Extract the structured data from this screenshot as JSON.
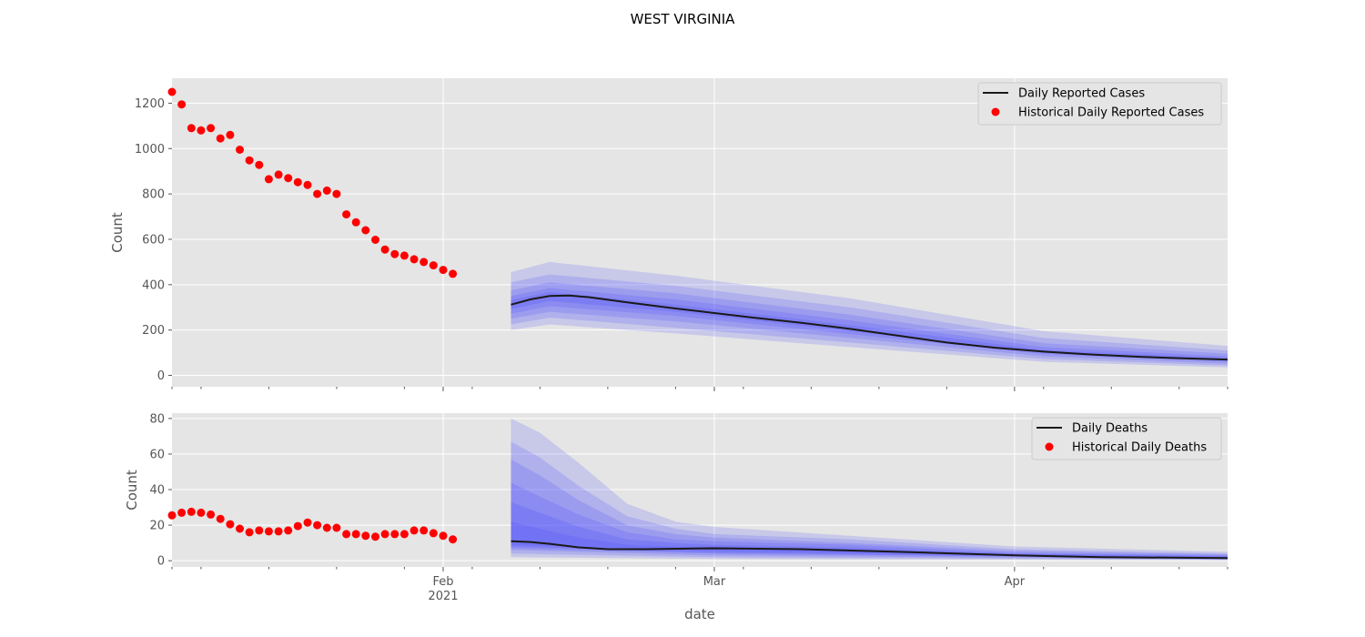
{
  "figure": {
    "title": "WEST VIRGINIA",
    "xlabel": "date"
  },
  "colors": {
    "panel_bg": "#e5e5e5",
    "grid": "#ffffff",
    "tick_text": "#555555",
    "median_line": "#1a1a1a",
    "historical_points": "#ff0000",
    "band_fill": "#3b3bff"
  },
  "chart_data": [
    {
      "type": "line",
      "panel": "cases",
      "ylabel": "Count",
      "ylim": [
        -50,
        1310
      ],
      "yticks": [
        0,
        200,
        400,
        600,
        800,
        1000,
        1200
      ],
      "xlim": [
        "2021-01-04",
        "2021-04-23"
      ],
      "xticks_major": [
        {
          "date": "2021-02-01",
          "label": "Feb",
          "sublabel": "2021"
        },
        {
          "date": "2021-03-01",
          "label": "Mar",
          "sublabel": ""
        },
        {
          "date": "2021-04-01",
          "label": "Apr",
          "sublabel": ""
        }
      ],
      "xticks_minor": [
        "2021-01-04",
        "2021-01-07",
        "2021-01-14",
        "2021-01-21",
        "2021-01-28",
        "2021-02-04",
        "2021-02-11",
        "2021-02-18",
        "2021-02-25",
        "2021-03-04",
        "2021-03-11",
        "2021-03-18",
        "2021-03-25",
        "2021-04-04",
        "2021-04-11",
        "2021-04-18",
        "2021-04-23"
      ],
      "grid": true,
      "legend": {
        "placement": "top-right",
        "line_label": "Daily Reported Cases",
        "points_label": "Historical Daily Reported Cases"
      },
      "historical": {
        "name": "Historical Daily Reported Cases",
        "start_date": "2021-01-04",
        "values": [
          1250,
          1195,
          1090,
          1080,
          1090,
          1045,
          1060,
          995,
          948,
          928,
          865,
          885,
          870,
          852,
          840,
          800,
          815,
          800,
          710,
          675,
          640,
          598,
          555,
          535,
          528,
          512,
          500,
          485,
          465,
          448
        ]
      },
      "forecast": {
        "name": "Daily Reported Cases",
        "median": [
          [
            "2021-02-08",
            312
          ],
          [
            "2021-02-10",
            335
          ],
          [
            "2021-02-12",
            350
          ],
          [
            "2021-02-14",
            352
          ],
          [
            "2021-02-16",
            345
          ],
          [
            "2021-02-20",
            322
          ],
          [
            "2021-02-25",
            295
          ],
          [
            "2021-03-01",
            275
          ],
          [
            "2021-03-05",
            255
          ],
          [
            "2021-03-10",
            232
          ],
          [
            "2021-03-15",
            205
          ],
          [
            "2021-03-20",
            175
          ],
          [
            "2021-03-25",
            145
          ],
          [
            "2021-03-30",
            122
          ],
          [
            "2021-04-04",
            105
          ],
          [
            "2021-04-09",
            92
          ],
          [
            "2021-04-14",
            82
          ],
          [
            "2021-04-18",
            76
          ],
          [
            "2021-04-23",
            70
          ]
        ],
        "bands": [
          {
            "lower": [
              [
                "2021-02-08",
                200
              ],
              [
                "2021-02-12",
                225
              ],
              [
                "2021-02-25",
                185
              ],
              [
                "2021-03-15",
                125
              ],
              [
                "2021-04-04",
                60
              ],
              [
                "2021-04-23",
                35
              ]
            ],
            "upper": [
              [
                "2021-02-08",
                455
              ],
              [
                "2021-02-12",
                500
              ],
              [
                "2021-02-25",
                440
              ],
              [
                "2021-03-15",
                340
              ],
              [
                "2021-04-04",
                195
              ],
              [
                "2021-04-23",
                130
              ]
            ]
          },
          {
            "lower": [
              [
                "2021-02-08",
                225
              ],
              [
                "2021-02-12",
                255
              ],
              [
                "2021-02-25",
                210
              ],
              [
                "2021-03-15",
                145
              ],
              [
                "2021-04-04",
                72
              ],
              [
                "2021-04-23",
                44
              ]
            ],
            "upper": [
              [
                "2021-02-08",
                410
              ],
              [
                "2021-02-12",
                445
              ],
              [
                "2021-02-25",
                395
              ],
              [
                "2021-03-15",
                300
              ],
              [
                "2021-04-04",
                165
              ],
              [
                "2021-04-23",
                110
              ]
            ]
          },
          {
            "lower": [
              [
                "2021-02-08",
                250
              ],
              [
                "2021-02-12",
                280
              ],
              [
                "2021-02-25",
                238
              ],
              [
                "2021-03-15",
                165
              ],
              [
                "2021-04-04",
                84
              ],
              [
                "2021-04-23",
                52
              ]
            ],
            "upper": [
              [
                "2021-02-08",
                375
              ],
              [
                "2021-02-12",
                410
              ],
              [
                "2021-02-25",
                362
              ],
              [
                "2021-03-15",
                268
              ],
              [
                "2021-04-04",
                142
              ],
              [
                "2021-04-23",
                96
              ]
            ]
          },
          {
            "lower": [
              [
                "2021-02-08",
                272
              ],
              [
                "2021-02-12",
                305
              ],
              [
                "2021-02-25",
                262
              ],
              [
                "2021-03-15",
                182
              ],
              [
                "2021-04-04",
                94
              ],
              [
                "2021-04-23",
                60
              ]
            ],
            "upper": [
              [
                "2021-02-08",
                350
              ],
              [
                "2021-02-12",
                385
              ],
              [
                "2021-02-25",
                335
              ],
              [
                "2021-03-15",
                243
              ],
              [
                "2021-04-04",
                125
              ],
              [
                "2021-04-23",
                84
              ]
            ]
          },
          {
            "lower": [
              [
                "2021-02-08",
                292
              ],
              [
                "2021-02-12",
                328
              ],
              [
                "2021-02-25",
                280
              ],
              [
                "2021-03-15",
                195
              ],
              [
                "2021-04-04",
                100
              ],
              [
                "2021-04-23",
                65
              ]
            ],
            "upper": [
              [
                "2021-02-08",
                332
              ],
              [
                "2021-02-12",
                368
              ],
              [
                "2021-02-25",
                312
              ],
              [
                "2021-03-15",
                222
              ],
              [
                "2021-04-04",
                112
              ],
              [
                "2021-04-23",
                76
              ]
            ]
          }
        ]
      }
    },
    {
      "type": "line",
      "panel": "deaths",
      "ylabel": "Count",
      "ylim": [
        -3.5,
        83
      ],
      "yticks": [
        0,
        20,
        40,
        60,
        80
      ],
      "xlim": [
        "2021-01-04",
        "2021-04-23"
      ],
      "grid": true,
      "legend": {
        "placement": "top-right",
        "line_label": "Daily Deaths",
        "points_label": "Historical Daily Deaths"
      },
      "historical": {
        "name": "Historical Daily Deaths",
        "start_date": "2021-01-04",
        "values": [
          25.5,
          27,
          27.5,
          27,
          26,
          23.5,
          20.5,
          18,
          16,
          17,
          16.5,
          16.5,
          17,
          19.5,
          21.5,
          20,
          18.5,
          18.5,
          15,
          15,
          14,
          13.5,
          15,
          15,
          15,
          17,
          17,
          15.5,
          14,
          12
        ]
      },
      "forecast": {
        "name": "Daily Deaths",
        "median": [
          [
            "2021-02-08",
            11
          ],
          [
            "2021-02-10",
            10.5
          ],
          [
            "2021-02-12",
            9.5
          ],
          [
            "2021-02-15",
            7.5
          ],
          [
            "2021-02-18",
            6.5
          ],
          [
            "2021-02-22",
            6.5
          ],
          [
            "2021-03-01",
            7
          ],
          [
            "2021-03-10",
            6.5
          ],
          [
            "2021-03-20",
            5
          ],
          [
            "2021-04-01",
            3
          ],
          [
            "2021-04-10",
            2
          ],
          [
            "2021-04-23",
            1.5
          ]
        ],
        "bands": [
          {
            "lower": [
              [
                "2021-02-08",
                2
              ],
              [
                "2021-03-01",
                1
              ],
              [
                "2021-04-23",
                0.3
              ]
            ],
            "upper": [
              [
                "2021-02-08",
                80
              ],
              [
                "2021-02-11",
                72
              ],
              [
                "2021-02-15",
                55
              ],
              [
                "2021-02-20",
                32
              ],
              [
                "2021-02-25",
                22
              ],
              [
                "2021-03-01",
                19
              ],
              [
                "2021-03-15",
                14
              ],
              [
                "2021-04-01",
                8
              ],
              [
                "2021-04-23",
                5
              ]
            ]
          },
          {
            "lower": [
              [
                "2021-02-08",
                4
              ],
              [
                "2021-03-01",
                2
              ],
              [
                "2021-04-23",
                0.5
              ]
            ],
            "upper": [
              [
                "2021-02-08",
                67
              ],
              [
                "2021-02-11",
                58
              ],
              [
                "2021-02-15",
                42
              ],
              [
                "2021-02-20",
                25
              ],
              [
                "2021-02-25",
                18
              ],
              [
                "2021-03-01",
                15
              ],
              [
                "2021-03-15",
                12
              ],
              [
                "2021-04-01",
                6.5
              ],
              [
                "2021-04-23",
                4
              ]
            ]
          },
          {
            "lower": [
              [
                "2021-02-08",
                6
              ],
              [
                "2021-03-01",
                3
              ],
              [
                "2021-04-23",
                0.7
              ]
            ],
            "upper": [
              [
                "2021-02-08",
                57
              ],
              [
                "2021-02-11",
                48
              ],
              [
                "2021-02-15",
                34
              ],
              [
                "2021-02-20",
                20
              ],
              [
                "2021-02-25",
                15
              ],
              [
                "2021-03-01",
                13
              ],
              [
                "2021-03-15",
                10
              ],
              [
                "2021-04-01",
                5.5
              ],
              [
                "2021-04-23",
                3.5
              ]
            ]
          },
          {
            "lower": [
              [
                "2021-02-08",
                7
              ],
              [
                "2021-03-01",
                4
              ],
              [
                "2021-04-23",
                0.9
              ]
            ],
            "upper": [
              [
                "2021-02-08",
                44
              ],
              [
                "2021-02-11",
                36
              ],
              [
                "2021-02-15",
                26
              ],
              [
                "2021-02-20",
                16
              ],
              [
                "2021-02-25",
                12
              ],
              [
                "2021-03-01",
                11
              ],
              [
                "2021-03-15",
                9
              ],
              [
                "2021-04-01",
                4.5
              ],
              [
                "2021-04-23",
                3
              ]
            ]
          },
          {
            "lower": [
              [
                "2021-02-08",
                8
              ],
              [
                "2021-03-01",
                4.5
              ],
              [
                "2021-04-23",
                1
              ]
            ],
            "upper": [
              [
                "2021-02-08",
                33
              ],
              [
                "2021-02-11",
                27
              ],
              [
                "2021-02-15",
                19
              ],
              [
                "2021-02-20",
                12
              ],
              [
                "2021-02-25",
                10
              ],
              [
                "2021-03-01",
                9
              ],
              [
                "2021-03-15",
                7.5
              ],
              [
                "2021-04-01",
                4
              ],
              [
                "2021-04-23",
                2.5
              ]
            ]
          },
          {
            "lower": [
              [
                "2021-02-08",
                9
              ],
              [
                "2021-03-01",
                5.5
              ],
              [
                "2021-04-23",
                1.1
              ]
            ],
            "upper": [
              [
                "2021-02-08",
                22
              ],
              [
                "2021-02-11",
                18
              ],
              [
                "2021-02-15",
                13
              ],
              [
                "2021-02-20",
                9
              ],
              [
                "2021-02-25",
                8
              ],
              [
                "2021-03-01",
                8
              ],
              [
                "2021-03-15",
                6.5
              ],
              [
                "2021-04-01",
                3.5
              ],
              [
                "2021-04-23",
                2
              ]
            ]
          }
        ]
      }
    }
  ]
}
